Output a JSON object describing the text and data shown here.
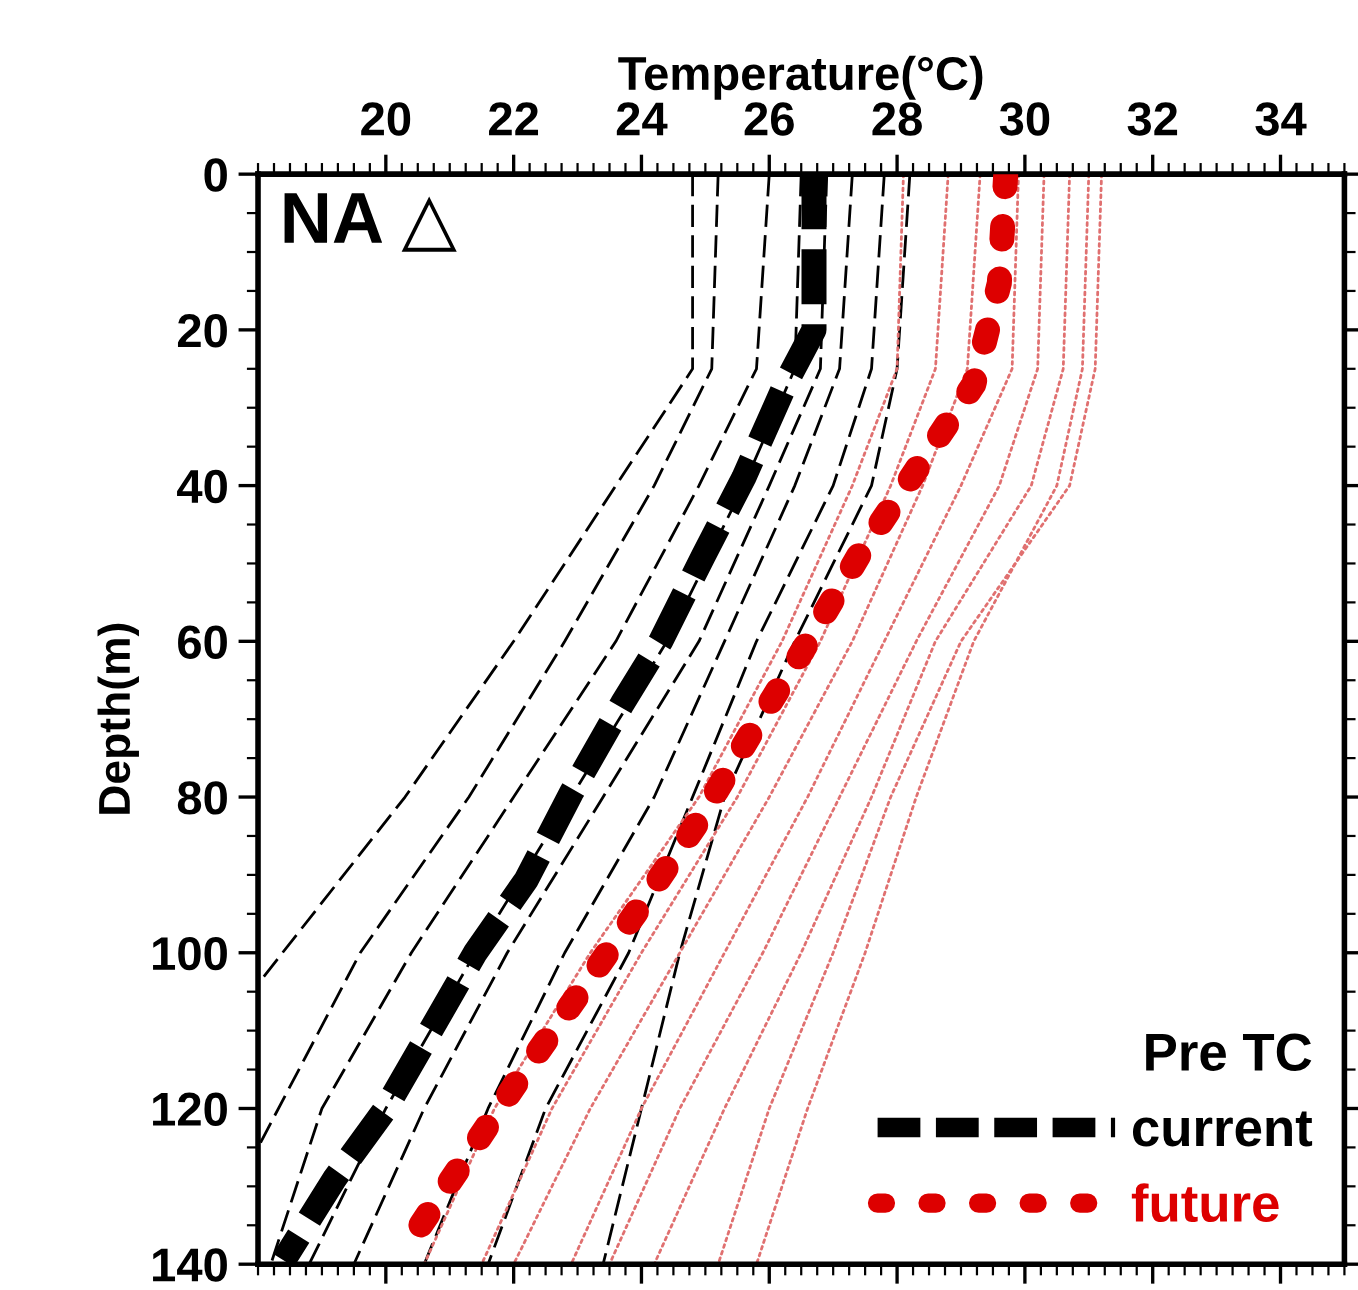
{
  "chart_data": {
    "type": "line",
    "xlabel": "Temperature(°C)",
    "ylabel": "Depth(m)",
    "legend_title": "Pre TC",
    "legend": "bottom right",
    "grid": false,
    "xlim": [
      18,
      35
    ],
    "xticks": [
      20,
      22,
      24,
      26,
      28,
      30,
      32,
      34
    ],
    "ylim": [
      140,
      0
    ],
    "yticks": [
      0,
      20,
      40,
      60,
      80,
      100,
      120,
      140
    ],
    "annotations": [
      "NA △"
    ],
    "series": [
      {
        "color": "#000000",
        "line_style": "dashed",
        "x": [
          24.8,
          24.8,
          23.6,
          22.0,
          20.3,
          18.0
        ],
        "values": [
          0,
          25,
          40,
          60,
          80,
          104
        ]
      },
      {
        "color": "#000000",
        "line_style": "dashed",
        "x": [
          25.2,
          25.1,
          24.2,
          22.8,
          21.3,
          19.6,
          18.0
        ],
        "values": [
          0,
          25,
          40,
          60,
          80,
          100,
          125
        ]
      },
      {
        "color": "#000000",
        "line_style": "dashed",
        "x": [
          26.0,
          25.8,
          24.9,
          23.6,
          22.0,
          20.4,
          19.0,
          18.2
        ],
        "values": [
          0,
          25,
          40,
          60,
          80,
          100,
          120,
          140
        ]
      },
      {
        "color": "#000000",
        "line_style": "dashed",
        "x": [
          26.5,
          26.4,
          25.6,
          24.4,
          22.9,
          21.4,
          20.0,
          18.8
        ],
        "values": [
          0,
          25,
          40,
          60,
          80,
          100,
          120,
          140
        ]
      },
      {
        "color": "#000000",
        "line_style": "dashed",
        "x": [
          26.9,
          26.8,
          26.0,
          24.9,
          23.4,
          21.9,
          20.6,
          19.5
        ],
        "values": [
          0,
          25,
          40,
          60,
          80,
          100,
          120,
          140
        ]
      },
      {
        "color": "#000000",
        "line_style": "dashed",
        "x": [
          27.3,
          27.1,
          26.4,
          25.3,
          24.2,
          22.8,
          21.6,
          20.6
        ],
        "values": [
          0,
          25,
          40,
          60,
          80,
          100,
          120,
          140
        ]
      },
      {
        "color": "#000000",
        "line_style": "dashed",
        "x": [
          27.8,
          27.6,
          27.0,
          25.8,
          24.8,
          23.8,
          22.5,
          21.6
        ],
        "values": [
          0,
          25,
          40,
          60,
          80,
          100,
          120,
          140
        ]
      },
      {
        "color": "#000000",
        "line_style": "dashed",
        "x": [
          28.2,
          28.0,
          27.6,
          26.4,
          25.3,
          24.6,
          24.0,
          23.4
        ],
        "values": [
          0,
          25,
          40,
          60,
          80,
          100,
          120,
          140
        ]
      },
      {
        "color": "#e07070",
        "line_style": "dotted",
        "x": [
          28.1,
          28.0,
          27.3,
          26.2,
          24.9,
          23.2,
          21.7,
          20.6
        ],
        "values": [
          0,
          25,
          40,
          60,
          80,
          100,
          120,
          140
        ]
      },
      {
        "color": "#e07070",
        "line_style": "dotted",
        "x": [
          28.8,
          28.6,
          27.9,
          26.8,
          25.5,
          24.0,
          22.6,
          21.5
        ],
        "values": [
          0,
          25,
          40,
          60,
          80,
          100,
          120,
          140
        ]
      },
      {
        "color": "#e07070",
        "line_style": "dotted",
        "x": [
          29.3,
          29.1,
          28.4,
          27.3,
          26.0,
          24.6,
          23.2,
          22.0
        ],
        "values": [
          0,
          25,
          40,
          60,
          80,
          100,
          120,
          140
        ]
      },
      {
        "color": "#e07070",
        "line_style": "dotted",
        "x": [
          29.9,
          29.8,
          29.0,
          27.8,
          26.6,
          25.3,
          24.0,
          22.9
        ],
        "values": [
          0,
          25,
          40,
          60,
          80,
          100,
          120,
          140
        ]
      },
      {
        "color": "#e07070",
        "line_style": "dotted",
        "x": [
          30.3,
          30.2,
          29.6,
          28.3,
          27.1,
          25.9,
          24.6,
          23.5
        ],
        "values": [
          0,
          25,
          40,
          60,
          80,
          100,
          120,
          140
        ]
      },
      {
        "color": "#e07070",
        "line_style": "dotted",
        "x": [
          30.7,
          30.6,
          30.1,
          28.6,
          27.6,
          26.5,
          25.3,
          24.2
        ],
        "values": [
          0,
          25,
          40,
          60,
          80,
          100,
          120,
          140
        ]
      },
      {
        "color": "#e07070",
        "line_style": "dotted",
        "x": [
          31.2,
          31.1,
          30.7,
          29.0,
          27.9,
          27.0,
          26.0,
          25.2
        ],
        "values": [
          0,
          25,
          40,
          60,
          80,
          100,
          120,
          140
        ]
      },
      {
        "color": "#e07070",
        "line_style": "dotted",
        "x": [
          31.0,
          30.9,
          30.5,
          29.2,
          28.3,
          27.5,
          26.6,
          25.8
        ],
        "values": [
          0,
          25,
          40,
          60,
          80,
          100,
          120,
          140
        ]
      },
      {
        "name": "current",
        "color": "#000000",
        "line_style": "dashed",
        "x": [
          26.7,
          26.7,
          26.25,
          25.6,
          24.97,
          24.3,
          23.7,
          22.9,
          22.2,
          21.4,
          20.7,
          20.0,
          19.2,
          18.4
        ],
        "values": [
          0,
          20,
          27,
          39,
          49,
          60,
          68,
          79.5,
          90.6,
          100,
          110,
          120,
          129,
          139.5
        ]
      },
      {
        "name": "future",
        "color": "#dd0000",
        "line_style": "dotted",
        "x": [
          29.7,
          29.6,
          29.2,
          28.3,
          27.4,
          26.5,
          25.7,
          24.9,
          23.9,
          23.0,
          22.1,
          21.2,
          20.3
        ],
        "values": [
          0,
          14,
          27,
          38,
          49,
          61.5,
          72,
          83,
          95,
          105.5,
          116,
          127,
          138
        ]
      }
    ]
  }
}
